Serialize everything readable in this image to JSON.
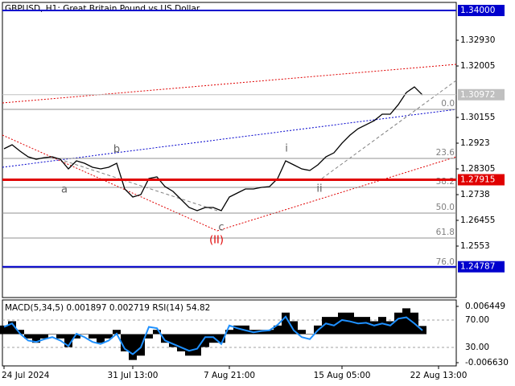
{
  "chart_data": [
    {
      "type": "line",
      "title": "GBPUSD, H1:  Great Britain Pound vs US Dollar",
      "categories": [
        "24 Jul 2024",
        null,
        null,
        null,
        null,
        null,
        null,
        null,
        null,
        null,
        null,
        null,
        null,
        null,
        null,
        null,
        "31 Jul 13:00",
        null,
        null,
        null,
        null,
        null,
        null,
        null,
        null,
        null,
        null,
        null,
        "7 Aug 21:00",
        null,
        null,
        null,
        null,
        null,
        null,
        null,
        null,
        null,
        null,
        null,
        null,
        null,
        "15 Aug 05:00",
        null,
        null,
        null,
        null,
        null,
        null,
        null,
        null,
        null,
        null,
        null,
        "22 Aug 13:00"
      ],
      "series": [
        {
          "name": "GBPUSD",
          "color": "#000000",
          "values": [
            1.29028,
            1.29172,
            1.28941,
            1.28739,
            1.28652,
            1.2871,
            1.28739,
            1.28652,
            1.28305,
            1.28594,
            1.28508,
            1.28363,
            1.28305,
            1.28363,
            1.28508,
            1.27583,
            1.27294,
            1.27381,
            1.27959,
            1.28016,
            1.2767,
            1.27496,
            1.27207,
            1.26918,
            1.26803,
            1.26918,
            1.26918,
            1.26803,
            1.27294,
            1.27438,
            1.27583,
            1.27583,
            1.27641,
            1.2767,
            1.27959,
            1.28594,
            1.2845,
            1.28305,
            1.28248,
            1.2845,
            1.28739,
            1.28883,
            1.2923,
            1.29519,
            1.2975,
            1.29895,
            1.30039,
            1.30271,
            1.30271,
            1.30617,
            1.31051,
            1.31253,
            1.30964,
            null,
            null
          ]
        }
      ],
      "ylim": [
        1.2368,
        1.3429
      ],
      "yticks": [
        {
          "value": 1.3293,
          "label": "1.32930"
        },
        1.32005,
        1.30155,
        1.2923,
        1.28305,
        1.2738,
        1.26455,
        1.2553
      ],
      "levels": [
        {
          "value": 1.34,
          "label": "1.34000",
          "color": "#0000cd"
        },
        {
          "value": 1.30972,
          "label": "1.30972",
          "color": "#c0c0c0"
        },
        {
          "value": 1.27915,
          "label": "1.27915",
          "color": "#e00000"
        },
        {
          "value": 1.24787,
          "label": "1.24787",
          "color": "#0000cd"
        }
      ],
      "fib_levels": [
        {
          "label": "0.0",
          "price": 1.30444
        },
        {
          "label": "23.6",
          "price": 1.28681
        },
        {
          "label": "38.2",
          "price": 1.27641
        },
        {
          "label": "50.0",
          "price": 1.26715
        },
        {
          "label": "61.8",
          "price": 1.25819
        },
        {
          "label": "76.0",
          "price": 1.2475
        }
      ],
      "wave_labels": [
        "a",
        "b",
        "c",
        "(II)",
        "i",
        "ii"
      ]
    },
    {
      "type": "bar",
      "series": [
        {
          "name": "MACD(5,34,5)",
          "color": "#000000",
          "values": [
            0.002,
            0.003,
            0.001,
            -0.001,
            -0.002,
            -0.001,
            0,
            -0.001,
            -0.003,
            -0.001,
            0,
            -0.001,
            -0.002,
            -0.001,
            0.001,
            -0.004,
            -0.006,
            -0.005,
            -0.001,
            0.001,
            -0.002,
            -0.003,
            -0.004,
            -0.005,
            -0.005,
            -0.003,
            -0.002,
            -0.002,
            0.001,
            0.002,
            0.002,
            0.001,
            0.001,
            0.001,
            0.002,
            0.005,
            0.003,
            0.001,
            0,
            0.002,
            0.004,
            0.004,
            0.005,
            0.005,
            0.004,
            0.004,
            0.003,
            0.004,
            0.003,
            0.005,
            0.006,
            0.005,
            0.001897
          ]
        },
        {
          "name": "RSI(14)",
          "color": "#1e90ff",
          "axis": "y2",
          "values": [
            60,
            65,
            50,
            40,
            38,
            42,
            45,
            40,
            32,
            50,
            45,
            38,
            35,
            40,
            50,
            28,
            20,
            30,
            60,
            58,
            40,
            35,
            30,
            25,
            28,
            45,
            45,
            35,
            62,
            58,
            55,
            52,
            54,
            55,
            63,
            75,
            55,
            45,
            42,
            55,
            65,
            62,
            70,
            68,
            65,
            66,
            62,
            65,
            62,
            72,
            74,
            65,
            54.82
          ]
        }
      ],
      "readouts": [
        "0.001897",
        "0.002719",
        "54.82"
      ],
      "ylim": [
        -0.007377,
        0.007944
      ],
      "yticks": [
        0.006449,
        {
          "value": -0.00663,
          "label": "-0.006630"
        }
      ],
      "y2lim": [
        2.9,
        99.4
      ],
      "y2ticks": [
        {
          "value": 70,
          "label": "70.00"
        },
        {
          "value": 30,
          "label": "30.00"
        }
      ]
    }
  ]
}
